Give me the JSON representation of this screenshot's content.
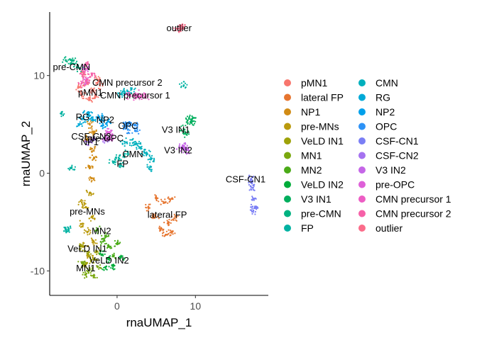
{
  "chart_data": {
    "type": "scatter",
    "xlabel": "rnaUMAP_1",
    "ylabel": "rnaUMAP_2",
    "xlim": [
      -8.6,
      19.3
    ],
    "ylim": [
      -12.5,
      16.5
    ],
    "xticks": [
      0,
      10
    ],
    "yticks": [
      -10,
      0,
      10
    ],
    "grid": false,
    "legend_position": "right",
    "legend_columns": 2,
    "clusters": [
      {
        "name": "pMN1",
        "color": "#F8766D",
        "points": [
          [
            -4.5,
            8
          ],
          [
            -3.8,
            9.2
          ],
          [
            -3,
            8.5
          ],
          [
            -2.5,
            9.6
          ],
          [
            -4.2,
            10.1
          ],
          [
            -3.5,
            7.6
          ],
          [
            -2.8,
            8
          ],
          [
            -4.8,
            8.8
          ],
          [
            -2.2,
            9
          ]
        ],
        "label": [
          -3.4,
          8.2
        ]
      },
      {
        "name": "lateral FP",
        "color": "#E6752F",
        "points": [
          [
            4,
            -3.5
          ],
          [
            4.8,
            -4.5
          ],
          [
            5.5,
            -5.8
          ],
          [
            6,
            -3
          ],
          [
            6.5,
            -5
          ],
          [
            7,
            -2.6
          ],
          [
            7.3,
            -4.6
          ],
          [
            5,
            -2.6
          ],
          [
            6.2,
            -6.3
          ],
          [
            7,
            -6
          ]
        ],
        "label": [
          6.4,
          -4.3
        ]
      },
      {
        "name": "NP1",
        "color": "#D18B15",
        "points": [
          [
            -3.5,
            5
          ],
          [
            -3,
            4.2
          ],
          [
            -3.8,
            3.5
          ],
          [
            -3.2,
            2.5
          ],
          [
            -3,
            1.5
          ],
          [
            -3.5,
            0.5
          ],
          [
            -3.2,
            -0.5
          ]
        ],
        "label": [
          -3.5,
          3.1
        ]
      },
      {
        "name": "pre-MNs",
        "color": "#BA9A0D",
        "points": [
          [
            -3.5,
            -2
          ],
          [
            -4,
            -3.5
          ],
          [
            -3.2,
            -4.5
          ],
          [
            -4.5,
            -5.2
          ],
          [
            -3.8,
            -6
          ],
          [
            -3,
            -7
          ],
          [
            -4.2,
            -7.5
          ],
          [
            -3.5,
            -8.5
          ],
          [
            -4.5,
            -3
          ]
        ],
        "label": [
          -3.8,
          -4
        ]
      },
      {
        "name": "VeLD IN1",
        "color": "#9EA209",
        "points": [
          [
            -4.5,
            -7.5
          ],
          [
            -3.8,
            -8.2
          ],
          [
            -3,
            -8.8
          ],
          [
            -4,
            -9.3
          ],
          [
            -2.5,
            -8
          ]
        ],
        "label": [
          -3.8,
          -7.8
        ]
      },
      {
        "name": "MN1",
        "color": "#7AA80E",
        "points": [
          [
            -4.5,
            -9.2
          ],
          [
            -3.5,
            -9.8
          ],
          [
            -3,
            -10.5
          ],
          [
            -4,
            -10.4
          ],
          [
            -2.5,
            -9.6
          ]
        ],
        "label": [
          -4,
          -9.8
        ]
      },
      {
        "name": "MN2",
        "color": "#4BAB18",
        "points": [
          [
            -2.5,
            -5.8
          ],
          [
            -1.5,
            -6.5
          ],
          [
            -1,
            -7.5
          ],
          [
            -0.5,
            -8.5
          ],
          [
            -1.8,
            -7
          ],
          [
            0,
            -7.2
          ]
        ],
        "label": [
          -2,
          -6
        ]
      },
      {
        "name": "VeLD IN2",
        "color": "#00AC3A",
        "points": [
          [
            -2,
            -8.3
          ],
          [
            -1,
            -8.8
          ],
          [
            -0.5,
            -9.5
          ],
          [
            -1.5,
            -9.6
          ],
          [
            0.5,
            -8.6
          ]
        ],
        "label": [
          -1,
          -9
        ]
      },
      {
        "name": "V3 IN1",
        "color": "#00AE5D",
        "points": [
          [
            8.5,
            4.5
          ],
          [
            9,
            5.4
          ],
          [
            9.5,
            5.2
          ],
          [
            8.7,
            4.1
          ],
          [
            9.6,
            5.6
          ]
        ],
        "label": [
          7.5,
          4.4
        ]
      },
      {
        "name": "pre-CMN",
        "color": "#00B281",
        "points": [
          [
            -6.5,
            11.5
          ],
          [
            -5.5,
            11.2
          ],
          [
            -5.8,
            11.6
          ],
          [
            -4.7,
            10.7
          ]
        ],
        "label": [
          -5.8,
          10.8
        ]
      },
      {
        "name": "FP",
        "color": "#00B2A2",
        "points": [
          [
            0.2,
            1.6
          ],
          [
            1,
            2
          ],
          [
            0.5,
            0.8
          ],
          [
            -0.5,
            1.2
          ],
          [
            -6.6,
            -5.7
          ],
          [
            -6.2,
            -5.8
          ],
          [
            -7.1,
            6.1
          ],
          [
            -5.8,
            0.6
          ],
          [
            8.5,
            9
          ]
        ],
        "label": [
          0.7,
          0.9
        ]
      },
      {
        "name": "CMN",
        "color": "#00B0BD",
        "points": [
          [
            1,
            3.2
          ],
          [
            2,
            3.1
          ],
          [
            3,
            2.6
          ],
          [
            3.8,
            2
          ],
          [
            4.3,
            1.4
          ],
          [
            4.2,
            0.6
          ],
          [
            3.5,
            2.1
          ],
          [
            2.5,
            3
          ],
          [
            1,
            8.3
          ],
          [
            1.8,
            8.6
          ],
          [
            0.6,
            8.1
          ]
        ],
        "label": [
          2,
          1.9
        ]
      },
      {
        "name": "RG",
        "color": "#00A9D7",
        "points": [
          [
            -4.3,
            5.6
          ],
          [
            -3.8,
            6.2
          ],
          [
            -3.2,
            5.4
          ],
          [
            -4.8,
            5
          ],
          [
            -3.5,
            5.9
          ]
        ],
        "label": [
          -4.4,
          5.7
        ]
      },
      {
        "name": "NP2",
        "color": "#00A0EB",
        "points": [
          [
            -2,
            5.5
          ],
          [
            -1.3,
            5.2
          ],
          [
            -1.8,
            4.9
          ],
          [
            -2.3,
            5.8
          ]
        ],
        "label": [
          -1.5,
          5.4
        ]
      },
      {
        "name": "OPC",
        "color": "#2D92F6",
        "points": [
          [
            1,
            4.9
          ],
          [
            1.6,
            5.2
          ],
          [
            2.2,
            4.9
          ],
          [
            2.4,
            4.3
          ],
          [
            1.4,
            4.5
          ]
        ],
        "label": [
          1.4,
          4.8
        ]
      },
      {
        "name": "CSF-CN1",
        "color": "#7A7EF5",
        "points": [
          [
            17.1,
            -0.6
          ],
          [
            17.3,
            -1.5
          ],
          [
            17.5,
            -2.6
          ],
          [
            17.6,
            -3.4
          ],
          [
            17.4,
            -3.8
          ],
          [
            17.2,
            -1
          ]
        ],
        "label": [
          16.4,
          -0.7
        ]
      },
      {
        "name": "CSF-CN2",
        "color": "#A572F0",
        "points": [
          [
            -3.6,
            3.2
          ],
          [
            -3,
            3.4
          ],
          [
            -1.5,
            3.4
          ]
        ],
        "label": [
          -3.3,
          3.7
        ]
      },
      {
        "name": "V3 IN2",
        "color": "#C566E7",
        "points": [
          [
            8.1,
            2.6
          ],
          [
            8.6,
            2.5
          ],
          [
            9,
            2.4
          ],
          [
            8.4,
            2.8
          ]
        ],
        "label": [
          7.8,
          2.3
        ]
      },
      {
        "name": "pre-OPC",
        "color": "#DE60D8",
        "points": [
          [
            -1.5,
            3.7
          ],
          [
            -1,
            3.6
          ],
          [
            -0.6,
            4
          ],
          [
            -1.2,
            4.2
          ],
          [
            -4,
            9.5
          ],
          [
            -4.1,
            10.7
          ]
        ],
        "label": [
          -1.5,
          3.5
        ]
      },
      {
        "name": "CMN precursor 1",
        "color": "#ED5DC4",
        "points": [
          [
            1.5,
            8
          ],
          [
            2.2,
            7.9
          ],
          [
            3,
            7.9
          ],
          [
            3.6,
            7.8
          ],
          [
            2.6,
            8.1
          ]
        ],
        "label": [
          2.3,
          7.9
        ]
      },
      {
        "name": "CMN precursor 2",
        "color": "#F661A8",
        "points": [
          [
            -4.4,
            10.1
          ],
          [
            -3.8,
            9.6
          ],
          [
            -3.2,
            10.1
          ],
          [
            -3.9,
            11.1
          ],
          [
            -4.5,
            9.2
          ]
        ],
        "label": [
          1.3,
          9.2
        ]
      },
      {
        "name": "outlier",
        "color": "#FB6C8A",
        "points": [
          [
            8.1,
            14.8
          ],
          [
            8.4,
            15
          ],
          [
            7.8,
            14.8
          ]
        ],
        "label": [
          7.9,
          14.8
        ]
      }
    ]
  }
}
